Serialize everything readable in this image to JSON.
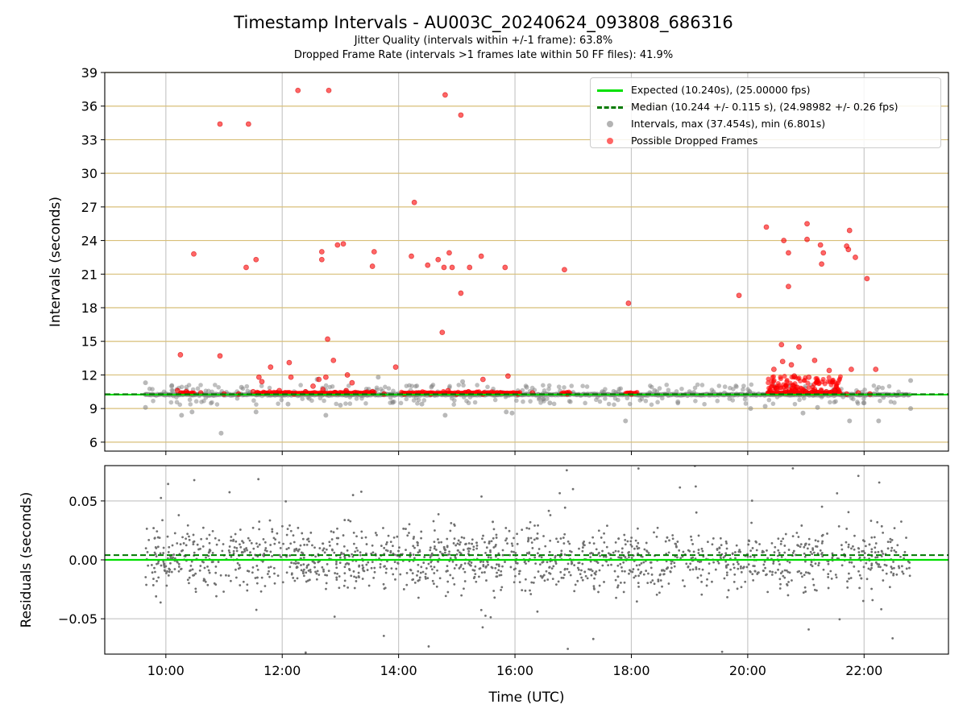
{
  "title": "Timestamp Intervals - AU003C_20240624_093808_686316",
  "subtitle_1": "Jitter Quality (intervals within +/-1 frame): 63.8%",
  "subtitle_2": "Dropped Frame Rate (intervals >1 frames late within 50 FF files): 41.9%",
  "legend": {
    "expected": "Expected (10.240s), (25.00000 fps)",
    "median": "Median (10.244 +/- 0.115 s), (24.98982 +/- 0.26 fps)",
    "intervals": "Intervals, max (37.454s), min (6.801s)",
    "dropped": "Possible Dropped Frames"
  },
  "colors": {
    "expected": "#00e000",
    "median": "#007a00",
    "intervals": "#808080",
    "dropped": "#ff0000",
    "hgrid": "#d8bf78",
    "vgrid": "#c8c8c8"
  },
  "chart_data": [
    {
      "type": "scatter",
      "xlabel": "",
      "ylabel": "Intervals (seconds)",
      "x_range_hours": [
        8.95,
        23.45
      ],
      "ylim": [
        5.2,
        39
      ],
      "yticks": [
        6,
        9,
        12,
        15,
        18,
        21,
        24,
        27,
        30,
        33,
        36,
        39
      ],
      "xticks": [
        "10:00",
        "12:00",
        "14:00",
        "16:00",
        "18:00",
        "20:00",
        "22:00"
      ],
      "expected_interval": 10.24,
      "median_interval": 10.244,
      "legend_position": "upper right",
      "series": [
        {
          "name": "Expected (10.240s), (25.00000 fps)",
          "kind": "hline",
          "y": 10.24
        },
        {
          "name": "Median (10.244 +/- 0.115 s), (24.98982 +/- 0.26 fps)",
          "kind": "hline-dashed",
          "y": 10.244
        },
        {
          "name": "Intervals, max (37.454s), min (6.801s)",
          "kind": "points",
          "points": [
            [
              9.65,
              10.24
            ],
            [
              9.65,
              11.3
            ],
            [
              9.65,
              9.1
            ],
            [
              10.27,
              8.4
            ],
            [
              10.45,
              8.7
            ],
            [
              10.95,
              6.8
            ],
            [
              11.55,
              8.7
            ],
            [
              12.75,
              8.4
            ],
            [
              14.8,
              8.4
            ],
            [
              15.85,
              8.7
            ],
            [
              15.95,
              8.6
            ],
            [
              17.9,
              7.9
            ],
            [
              20.05,
              9.0
            ],
            [
              20.95,
              8.6
            ],
            [
              21.75,
              7.9
            ],
            [
              22.25,
              7.9
            ],
            [
              22.8,
              9.0
            ],
            [
              22.8,
              11.5
            ],
            [
              10.1,
              11.0
            ],
            [
              11.3,
              10.9
            ],
            [
              12.6,
              11.6
            ],
            [
              13.65,
              11.8
            ],
            [
              15.1,
              11.4
            ],
            [
              16.2,
              10.9
            ],
            [
              17.5,
              10.5
            ],
            [
              18.4,
              10.6
            ],
            [
              19.0,
              10.5
            ],
            [
              19.6,
              10.4
            ],
            [
              20.3,
              9.2
            ],
            [
              21.2,
              9.1
            ],
            [
              22.0,
              9.5
            ],
            [
              12.1,
              9.4
            ],
            [
              13.0,
              9.3
            ],
            [
              14.4,
              9.4
            ],
            [
              16.6,
              9.5
            ],
            [
              18.8,
              9.6
            ]
          ],
          "band": [
            9.65,
            22.8,
            10.24
          ]
        },
        {
          "name": "Possible Dropped Frames",
          "kind": "points",
          "points": [
            [
              10.25,
              13.8
            ],
            [
              10.48,
              22.8
            ],
            [
              10.93,
              34.4
            ],
            [
              10.93,
              13.7
            ],
            [
              11.38,
              21.6
            ],
            [
              11.42,
              34.4
            ],
            [
              11.55,
              22.3
            ],
            [
              11.6,
              11.8
            ],
            [
              11.65,
              11.4
            ],
            [
              11.8,
              12.7
            ],
            [
              12.12,
              13.1
            ],
            [
              12.27,
              37.4
            ],
            [
              12.15,
              11.8
            ],
            [
              12.53,
              11.0
            ],
            [
              12.63,
              11.6
            ],
            [
              12.68,
              23.0
            ],
            [
              12.68,
              22.3
            ],
            [
              12.75,
              11.8
            ],
            [
              12.78,
              15.2
            ],
            [
              12.8,
              37.4
            ],
            [
              12.88,
              13.3
            ],
            [
              12.95,
              23.6
            ],
            [
              13.05,
              23.7
            ],
            [
              13.12,
              12.0
            ],
            [
              13.2,
              11.3
            ],
            [
              13.55,
              21.7
            ],
            [
              13.58,
              23.0
            ],
            [
              13.95,
              12.7
            ],
            [
              14.22,
              22.6
            ],
            [
              14.27,
              27.4
            ],
            [
              14.5,
              21.8
            ],
            [
              14.68,
              22.3
            ],
            [
              14.75,
              15.8
            ],
            [
              14.78,
              21.6
            ],
            [
              14.8,
              37.0
            ],
            [
              14.87,
              22.9
            ],
            [
              14.92,
              21.6
            ],
            [
              15.07,
              35.2
            ],
            [
              15.07,
              19.3
            ],
            [
              15.22,
              21.6
            ],
            [
              15.42,
              22.6
            ],
            [
              15.45,
              11.6
            ],
            [
              15.83,
              21.6
            ],
            [
              15.88,
              11.9
            ],
            [
              16.85,
              21.4
            ],
            [
              17.95,
              18.4
            ],
            [
              19.85,
              19.1
            ],
            [
              20.32,
              25.2
            ],
            [
              20.45,
              12.5
            ],
            [
              20.58,
              14.7
            ],
            [
              20.62,
              24.0
            ],
            [
              20.7,
              22.9
            ],
            [
              20.7,
              19.9
            ],
            [
              20.75,
              12.9
            ],
            [
              20.88,
              14.5
            ],
            [
              21.02,
              25.5
            ],
            [
              21.02,
              24.1
            ],
            [
              21.15,
              13.3
            ],
            [
              21.25,
              23.6
            ],
            [
              21.27,
              21.9
            ],
            [
              21.3,
              22.9
            ],
            [
              21.4,
              12.4
            ],
            [
              21.7,
              23.5
            ],
            [
              21.73,
              23.2
            ],
            [
              21.75,
              24.9
            ],
            [
              21.78,
              12.5
            ],
            [
              21.85,
              22.5
            ],
            [
              22.05,
              20.6
            ],
            [
              22.2,
              12.5
            ],
            [
              20.6,
              13.2
            ],
            [
              20.8,
              11.9
            ],
            [
              21.05,
              11.8
            ],
            [
              10.2,
              10.6
            ],
            [
              10.35,
              10.5
            ],
            [
              10.6,
              10.4
            ],
            [
              11.0,
              10.3
            ],
            [
              11.25,
              10.3
            ],
            [
              11.5,
              10.5
            ],
            [
              11.7,
              10.4
            ],
            [
              11.95,
              10.6
            ],
            [
              12.2,
              10.3
            ],
            [
              12.4,
              10.5
            ],
            [
              12.7,
              10.7
            ],
            [
              12.9,
              10.4
            ],
            [
              13.1,
              10.6
            ],
            [
              13.3,
              10.4
            ],
            [
              13.55,
              10.5
            ],
            [
              13.75,
              10.3
            ],
            [
              14.1,
              10.3
            ],
            [
              14.35,
              10.4
            ],
            [
              14.55,
              10.3
            ],
            [
              14.85,
              10.6
            ],
            [
              15.0,
              10.3
            ],
            [
              15.2,
              10.5
            ],
            [
              15.45,
              10.3
            ],
            [
              15.75,
              10.4
            ],
            [
              16.05,
              10.3
            ],
            [
              16.3,
              10.4
            ],
            [
              16.9,
              10.3
            ],
            [
              18.0,
              10.3
            ],
            [
              20.35,
              10.4
            ],
            [
              20.5,
              10.8
            ],
            [
              20.65,
              10.6
            ],
            [
              20.85,
              10.9
            ],
            [
              21.0,
              10.5
            ],
            [
              21.15,
              10.7
            ],
            [
              21.35,
              10.5
            ],
            [
              21.5,
              10.6
            ],
            [
              21.7,
              10.3
            ],
            [
              21.9,
              10.4
            ],
            [
              22.1,
              10.3
            ]
          ],
          "dense_clusters": [
            [
              10.25,
              10.5
            ],
            [
              11.55,
              13.6
            ],
            [
              14.05,
              16.1
            ],
            [
              16.8,
              16.95
            ],
            [
              17.9,
              18.1
            ],
            [
              20.35,
              21.6
            ]
          ]
        }
      ]
    },
    {
      "type": "scatter",
      "xlabel": "Time (UTC)",
      "ylabel": "Residuals (seconds)",
      "x_range_hours": [
        8.95,
        23.45
      ],
      "ylim": [
        -0.08,
        0.08
      ],
      "yticks": [
        "−0.05",
        "0.00",
        "0.05"
      ],
      "ytick_values": [
        -0.05,
        0.0,
        0.05
      ],
      "xticks": [
        "10:00",
        "12:00",
        "14:00",
        "16:00",
        "18:00",
        "20:00",
        "22:00"
      ],
      "series": [
        {
          "kind": "hline",
          "y": 0.0
        },
        {
          "kind": "hline-dashed",
          "y": 0.004
        },
        {
          "kind": "points",
          "x_span": [
            9.65,
            22.8
          ],
          "spread": 0.045,
          "count": 1600
        }
      ]
    }
  ]
}
